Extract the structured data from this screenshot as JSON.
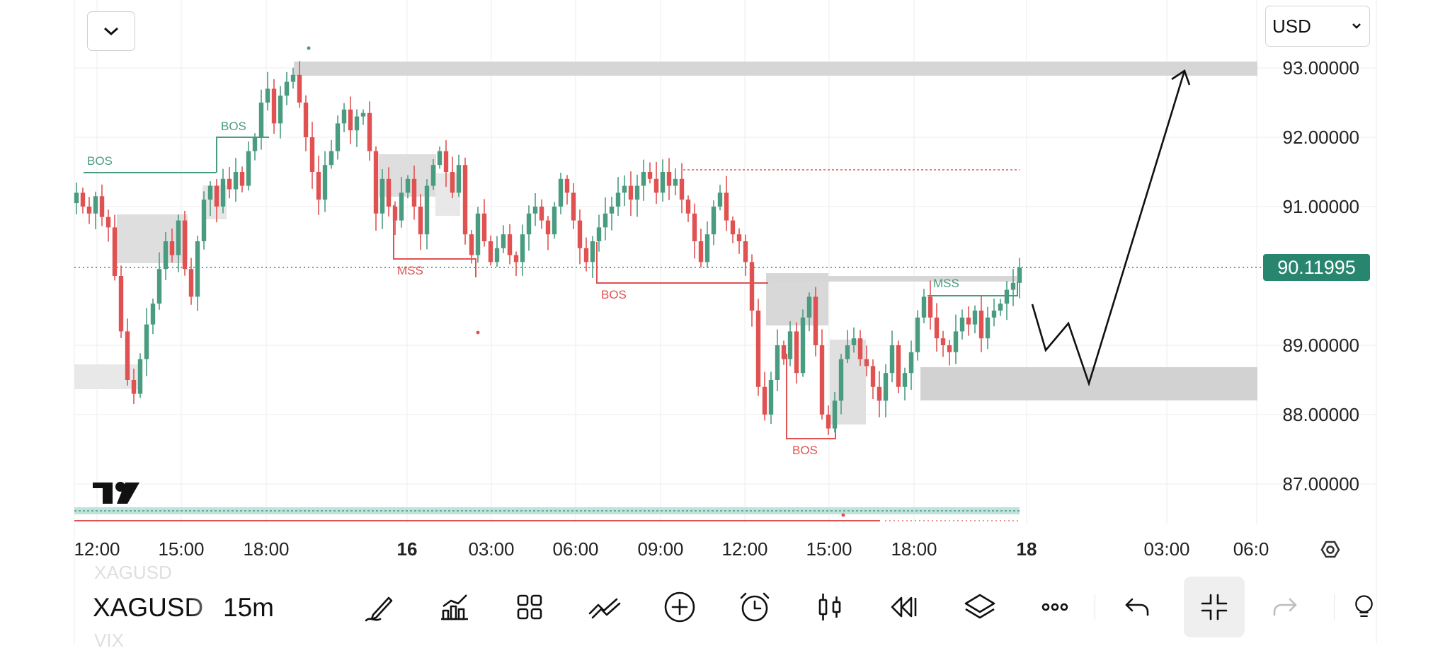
{
  "chart": {
    "symbol": "XAGUSD",
    "symbol_prev": "XAGUSD",
    "symbol_next": "VIX",
    "interval": "15m",
    "currency": "USD",
    "last_price": "90.11995",
    "colors": {
      "up": "#4a9c80",
      "down": "#e05252",
      "zone": "#d2d2d2",
      "price_line": "#2e8b76",
      "badge": "#28866f"
    }
  },
  "chart_data": {
    "type": "candlestick",
    "y_ticks": [
      "93.00000",
      "92.00000",
      "91.00000",
      "89.00000",
      "88.00000",
      "87.00000"
    ],
    "x_ticks": [
      "12:00",
      "15:00",
      "18:00",
      "16",
      "03:00",
      "06:00",
      "09:00",
      "12:00",
      "15:00",
      "18:00",
      "18",
      "03:00",
      "06:0"
    ],
    "ylim": [
      86.5,
      93.5
    ],
    "grid": true,
    "annotations": [
      {
        "text": "BOS",
        "kind": "bullish"
      },
      {
        "text": "BOS",
        "kind": "bullish"
      },
      {
        "text": "MSS",
        "kind": "bearish"
      },
      {
        "text": "BOS",
        "kind": "bearish"
      },
      {
        "text": "BOS",
        "kind": "bearish"
      },
      {
        "text": "MSS",
        "kind": "bullish"
      }
    ],
    "closes": [
      91.2,
      91.0,
      90.9,
      91.15,
      90.85,
      90.7,
      90.0,
      89.2,
      88.5,
      88.3,
      88.8,
      89.3,
      89.6,
      90.1,
      90.5,
      90.3,
      90.8,
      90.1,
      89.7,
      90.5,
      91.1,
      91.3,
      91.0,
      91.4,
      91.25,
      91.5,
      91.3,
      91.8,
      92.0,
      92.5,
      92.7,
      92.2,
      92.6,
      92.8,
      92.9,
      92.5,
      92.0,
      91.5,
      91.1,
      91.6,
      91.8,
      92.2,
      92.4,
      92.1,
      92.3,
      92.35,
      91.8,
      90.9,
      91.4,
      91.0,
      90.8,
      91.2,
      91.4,
      91.0,
      90.6,
      91.3,
      91.6,
      91.8,
      91.5,
      91.2,
      91.6,
      90.6,
      90.3,
      90.9,
      90.5,
      90.2,
      90.4,
      90.6,
      90.3,
      90.2,
      90.6,
      90.9,
      91.0,
      90.8,
      90.6,
      91.0,
      91.4,
      91.2,
      90.8,
      90.4,
      90.2,
      90.5,
      90.7,
      90.9,
      91.0,
      91.2,
      91.3,
      91.1,
      91.3,
      91.5,
      91.4,
      91.2,
      91.5,
      91.3,
      91.4,
      91.1,
      90.9,
      90.5,
      90.2,
      90.6,
      91.0,
      91.2,
      90.8,
      90.6,
      90.5,
      90.2,
      89.5,
      88.4,
      88.0,
      88.5,
      89.0,
      88.8,
      89.2,
      88.6,
      89.4,
      89.7,
      89.0,
      88.0,
      87.8,
      88.2,
      88.8,
      89.0,
      89.1,
      88.8,
      88.7,
      88.4,
      88.2,
      88.6,
      89.0,
      88.4,
      88.6,
      88.9,
      89.4,
      89.7,
      89.4,
      89.1,
      89.0,
      88.9,
      89.2,
      89.4,
      89.3,
      89.5,
      89.1,
      89.4,
      89.5,
      89.6,
      89.8,
      89.9,
      90.12
    ]
  },
  "toolbar": {
    "draw": "Drawing tools",
    "indicators": "Indicators",
    "layout": "Layout",
    "compare": "Compare",
    "add": "Add",
    "alert": "Alert",
    "chart_type": "Chart type",
    "replay": "Replay",
    "layers": "Layers",
    "more": "More",
    "undo": "Undo",
    "exit_fullscreen": "Exit fullscreen",
    "redo": "Redo",
    "idea": "Publish idea"
  }
}
